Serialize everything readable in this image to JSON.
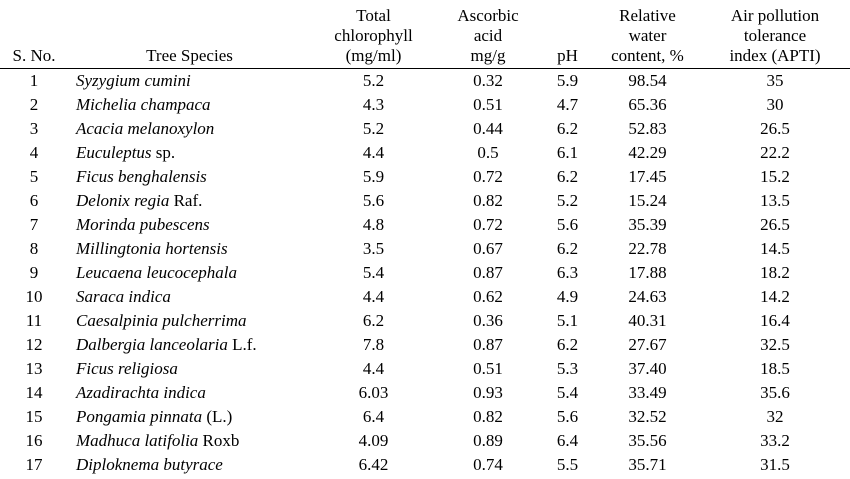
{
  "table": {
    "headers": [
      [
        "S. No."
      ],
      [
        "Tree Species"
      ],
      [
        "Total",
        "chlorophyll",
        "(mg/ml)"
      ],
      [
        "Ascorbic",
        "acid",
        "mg/g"
      ],
      [
        "pH"
      ],
      [
        "Relative",
        "water",
        "content, %"
      ],
      [
        "Air pollution",
        "tolerance",
        "index (APTI)"
      ]
    ],
    "rows": [
      {
        "sno": "1",
        "species": "Syzygium cumini",
        "authority": "",
        "chlorophyll": "5.2",
        "ascorbic": "0.32",
        "ph": "5.9",
        "rwc": "98.54",
        "apti": "35"
      },
      {
        "sno": "2",
        "species": "Michelia champaca",
        "authority": "",
        "chlorophyll": "4.3",
        "ascorbic": "0.51",
        "ph": "4.7",
        "rwc": "65.36",
        "apti": "30"
      },
      {
        "sno": "3",
        "species": "Acacia melanoxylon",
        "authority": "",
        "chlorophyll": "5.2",
        "ascorbic": "0.44",
        "ph": "6.2",
        "rwc": "52.83",
        "apti": "26.5"
      },
      {
        "sno": "4",
        "species": "Euculeptus",
        "authority": "sp.",
        "chlorophyll": "4.4",
        "ascorbic": "0.5",
        "ph": "6.1",
        "rwc": "42.29",
        "apti": "22.2"
      },
      {
        "sno": "5",
        "species": "Ficus benghalensis",
        "authority": "",
        "chlorophyll": "5.9",
        "ascorbic": "0.72",
        "ph": "6.2",
        "rwc": "17.45",
        "apti": "15.2"
      },
      {
        "sno": "6",
        "species": "Delonix regia",
        "authority": "Raf.",
        "chlorophyll": "5.6",
        "ascorbic": "0.82",
        "ph": "5.2",
        "rwc": "15.24",
        "apti": "13.5"
      },
      {
        "sno": "7",
        "species": "Morinda pubescens",
        "authority": "",
        "chlorophyll": "4.8",
        "ascorbic": "0.72",
        "ph": "5.6",
        "rwc": "35.39",
        "apti": "26.5"
      },
      {
        "sno": "8",
        "species": "Millingtonia hortensis",
        "authority": "",
        "chlorophyll": "3.5",
        "ascorbic": "0.67",
        "ph": "6.2",
        "rwc": "22.78",
        "apti": "14.5"
      },
      {
        "sno": "9",
        "species": "Leucaena leucocephala",
        "authority": "",
        "chlorophyll": "5.4",
        "ascorbic": "0.87",
        "ph": "6.3",
        "rwc": "17.88",
        "apti": "18.2"
      },
      {
        "sno": "10",
        "species": "Saraca indica",
        "authority": "",
        "chlorophyll": "4.4",
        "ascorbic": "0.62",
        "ph": "4.9",
        "rwc": "24.63",
        "apti": "14.2"
      },
      {
        "sno": "11",
        "species": "Caesalpinia pulcherrima",
        "authority": "",
        "chlorophyll": "6.2",
        "ascorbic": "0.36",
        "ph": "5.1",
        "rwc": "40.31",
        "apti": "16.4"
      },
      {
        "sno": "12",
        "species": "Dalbergia lanceolaria",
        "authority": "L.f.",
        "chlorophyll": "7.8",
        "ascorbic": "0.87",
        "ph": "6.2",
        "rwc": "27.67",
        "apti": "32.5"
      },
      {
        "sno": "13",
        "species": "Ficus religiosa",
        "authority": "",
        "chlorophyll": "4.4",
        "ascorbic": "0.51",
        "ph": "5.3",
        "rwc": "37.40",
        "apti": "18.5"
      },
      {
        "sno": "14",
        "species": "Azadirachta indica",
        "authority": "",
        "chlorophyll": "6.03",
        "ascorbic": "0.93",
        "ph": "5.4",
        "rwc": "33.49",
        "apti": "35.6"
      },
      {
        "sno": "15",
        "species": "Pongamia pinnata",
        "authority": "(L.)",
        "chlorophyll": "6.4",
        "ascorbic": "0.82",
        "ph": "5.6",
        "rwc": "32.52",
        "apti": "32"
      },
      {
        "sno": "16",
        "species": "Madhuca latifolia",
        "authority": "Roxb",
        "chlorophyll": "4.09",
        "ascorbic": "0.89",
        "ph": "6.4",
        "rwc": "35.56",
        "apti": "33.2"
      },
      {
        "sno": "17",
        "species": "Diploknema butyrace",
        "authority": "",
        "chlorophyll": "6.42",
        "ascorbic": "0.74",
        "ph": "5.5",
        "rwc": "35.71",
        "apti": "31.5"
      }
    ]
  }
}
